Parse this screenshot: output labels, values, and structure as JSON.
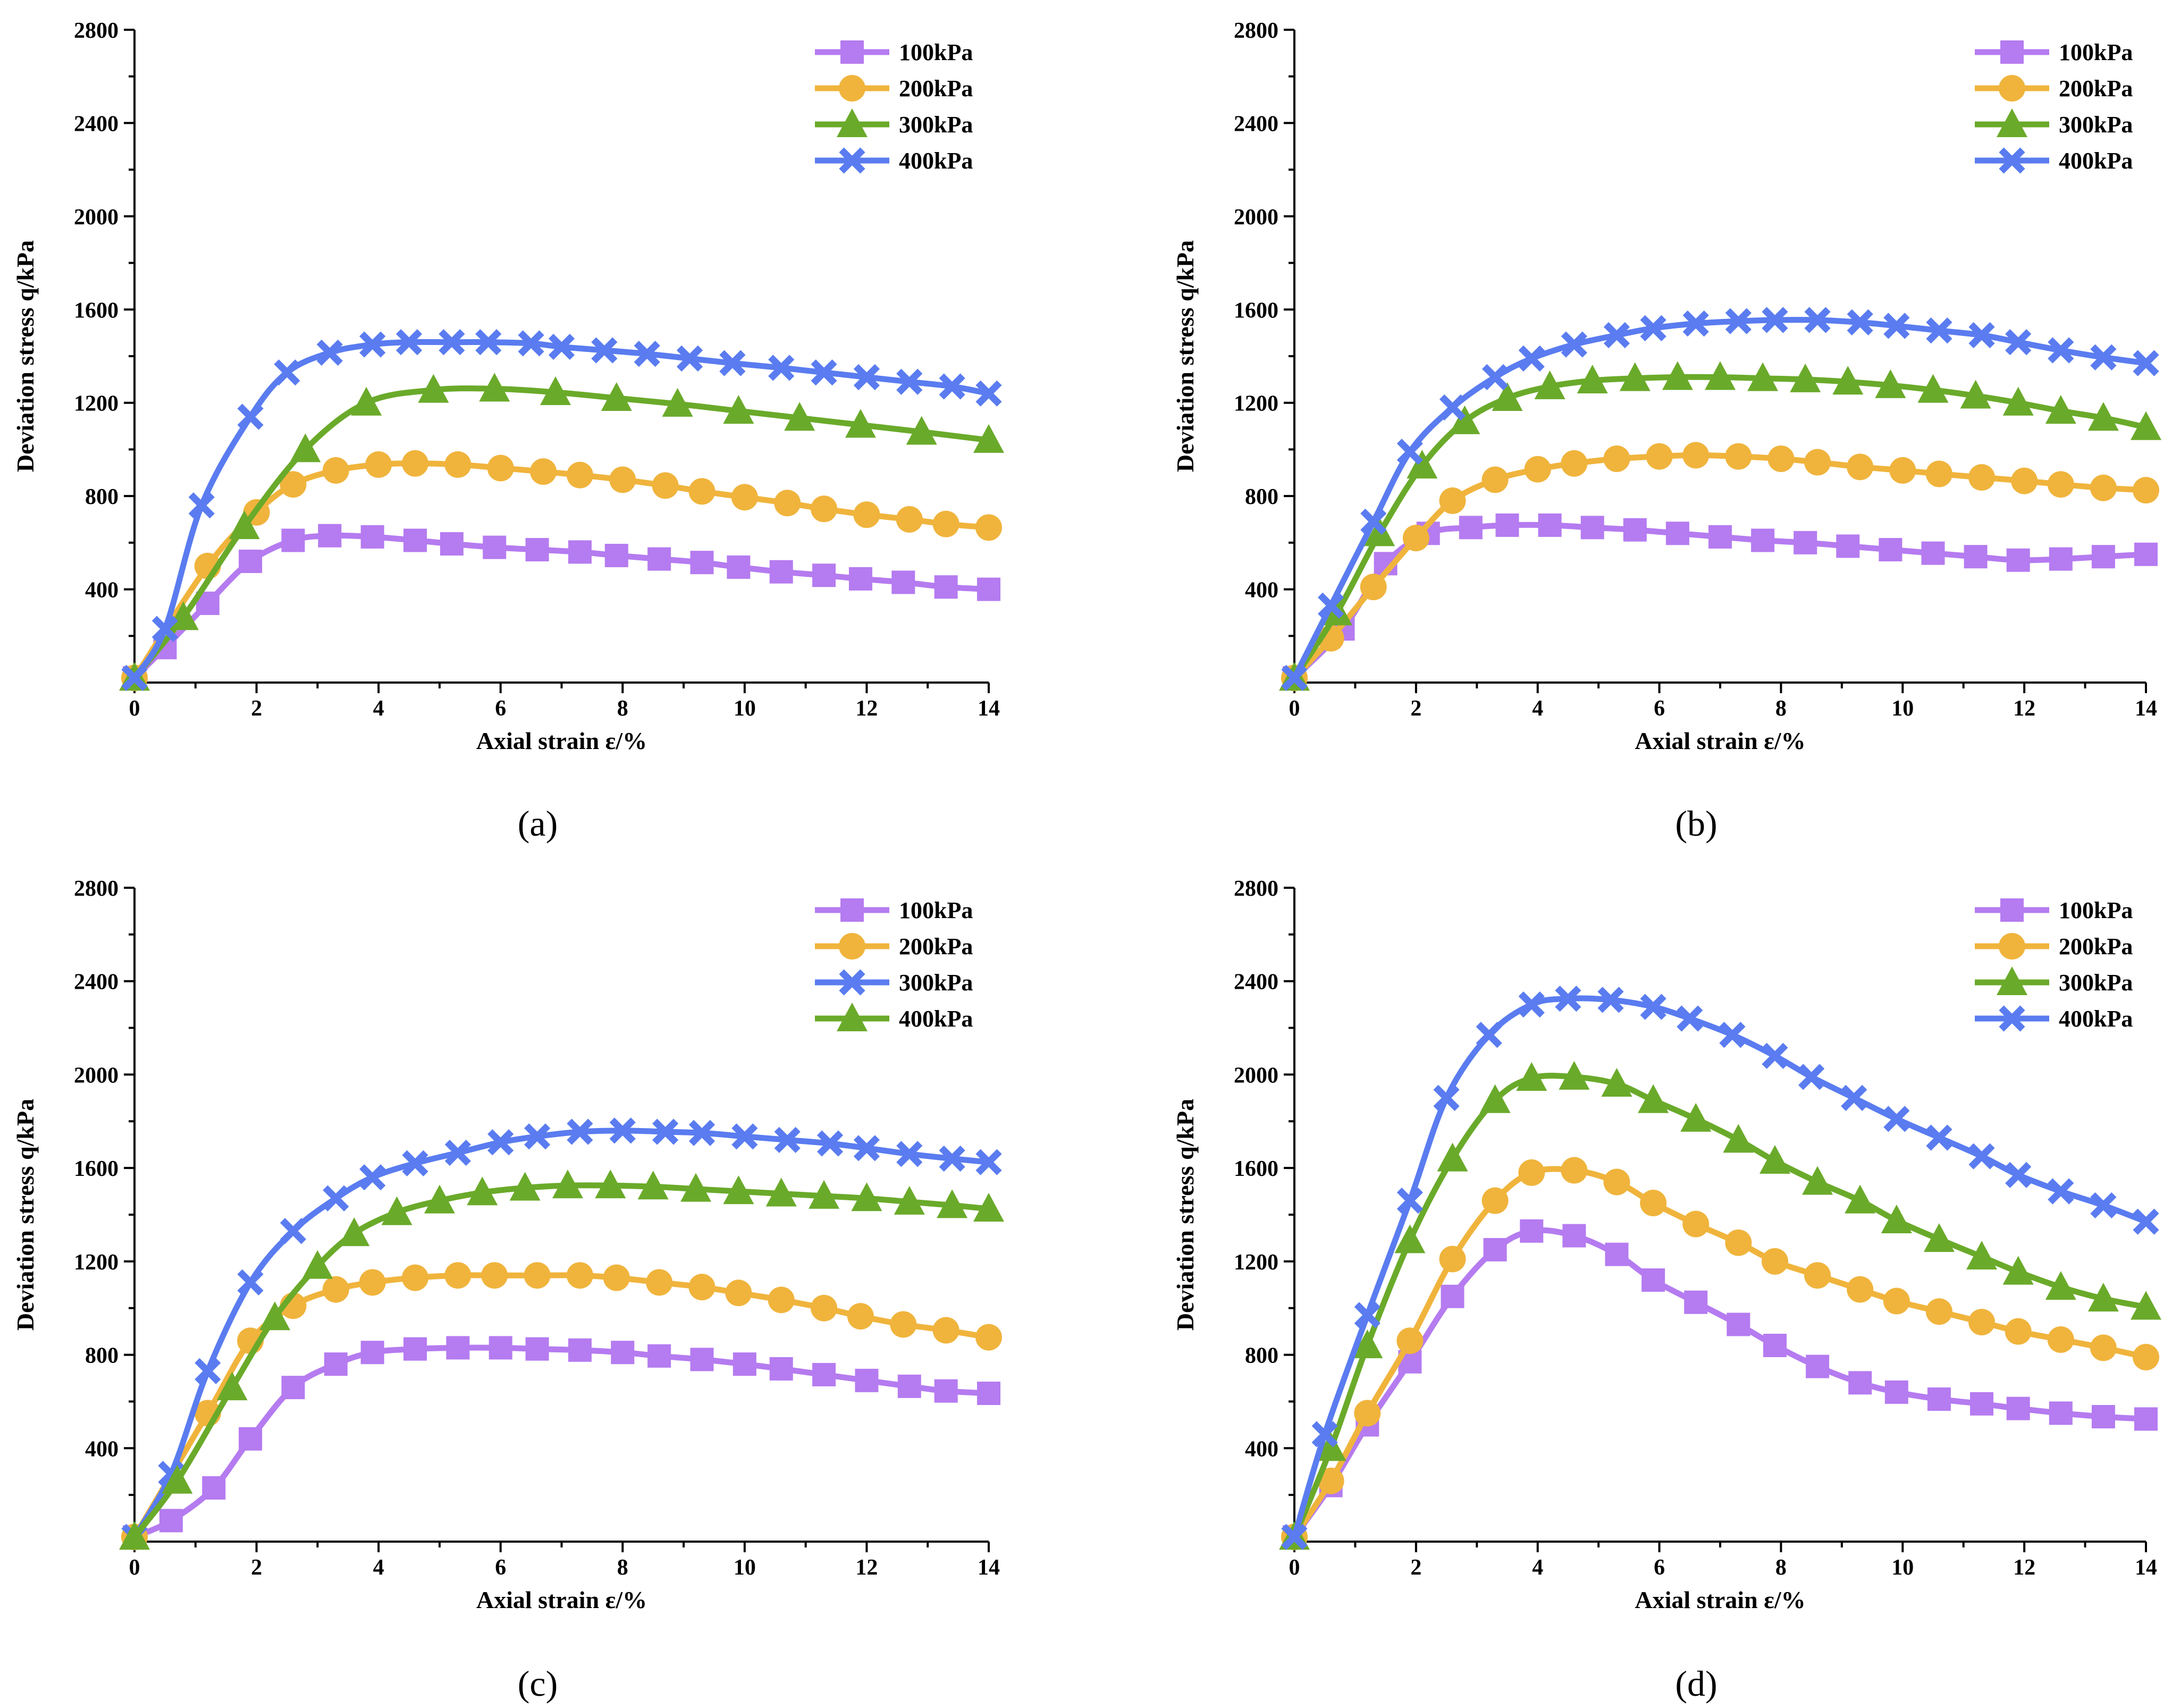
{
  "figure": {
    "panels": [
      "(a)",
      "(b)",
      "(c)",
      "(d)"
    ]
  },
  "chart_data": [
    {
      "id": "a",
      "panel_label": "(a)",
      "type": "line",
      "xlabel": "Axial strain ε/%",
      "ylabel": "Deviation stress q/kPa",
      "xlim": [
        0,
        14
      ],
      "ylim": [
        0,
        2800
      ],
      "xticks": [
        0,
        2,
        4,
        6,
        8,
        10,
        12,
        14
      ],
      "yticks": [
        400,
        800,
        1200,
        1600,
        2000,
        2400,
        2800
      ],
      "legend_position": "top-right",
      "series": [
        {
          "name": "100kPa",
          "color": "#b57bf0",
          "marker": "square",
          "x": [
            0,
            0.5,
            1.2,
            1.9,
            2.6,
            3.2,
            3.9,
            4.6,
            5.2,
            5.9,
            6.6,
            7.3,
            7.9,
            8.6,
            9.3,
            9.9,
            10.6,
            11.3,
            11.9,
            12.6,
            13.3,
            14
          ],
          "y": [
            20,
            150,
            340,
            520,
            610,
            630,
            625,
            610,
            595,
            580,
            570,
            560,
            545,
            530,
            515,
            495,
            475,
            460,
            445,
            430,
            410,
            400
          ]
        },
        {
          "name": "200kPa",
          "color": "#f0b43c",
          "marker": "circle",
          "x": [
            0,
            1.2,
            2.0,
            2.6,
            3.3,
            4.0,
            4.6,
            5.3,
            6.0,
            6.7,
            7.3,
            8.0,
            8.7,
            9.3,
            10.0,
            10.7,
            11.3,
            12.0,
            12.7,
            13.3,
            14
          ],
          "y": [
            20,
            500,
            730,
            850,
            910,
            935,
            940,
            935,
            920,
            905,
            890,
            870,
            845,
            820,
            795,
            770,
            745,
            720,
            700,
            680,
            665
          ]
        },
        {
          "name": "300kPa",
          "color": "#6aaa2a",
          "marker": "triangle",
          "x": [
            0,
            0.8,
            1.8,
            2.8,
            3.8,
            4.9,
            5.9,
            6.9,
            7.9,
            8.9,
            9.9,
            10.9,
            11.9,
            12.9,
            14
          ],
          "y": [
            20,
            280,
            670,
            1000,
            1200,
            1255,
            1260,
            1245,
            1220,
            1195,
            1165,
            1135,
            1105,
            1075,
            1040
          ]
        },
        {
          "name": "400kPa",
          "color": "#5a7cf0",
          "marker": "x",
          "x": [
            0,
            0.5,
            1.1,
            1.9,
            2.5,
            3.2,
            3.9,
            4.5,
            5.2,
            5.8,
            6.5,
            7.0,
            7.7,
            8.4,
            9.1,
            9.8,
            10.6,
            11.3,
            12.0,
            12.7,
            13.4,
            14
          ],
          "y": [
            20,
            230,
            760,
            1140,
            1330,
            1415,
            1450,
            1460,
            1460,
            1460,
            1455,
            1440,
            1425,
            1410,
            1390,
            1370,
            1350,
            1330,
            1310,
            1290,
            1270,
            1240
          ]
        }
      ]
    },
    {
      "id": "b",
      "panel_label": "(b)",
      "type": "line",
      "xlabel": "Axial strain ε/%",
      "ylabel": "Deviation stress q/kPa",
      "xlim": [
        0,
        14
      ],
      "ylim": [
        0,
        2800
      ],
      "xticks": [
        0,
        2,
        4,
        6,
        8,
        10,
        12,
        14
      ],
      "yticks": [
        400,
        800,
        1200,
        1600,
        2000,
        2400,
        2800
      ],
      "legend_position": "top-right",
      "series": [
        {
          "name": "100kPa",
          "color": "#b57bf0",
          "marker": "square",
          "x": [
            0,
            0.8,
            1.5,
            2.2,
            2.9,
            3.5,
            4.2,
            4.9,
            5.6,
            6.3,
            7.0,
            7.7,
            8.4,
            9.1,
            9.8,
            10.5,
            11.2,
            11.9,
            12.6,
            13.3,
            14
          ],
          "y": [
            20,
            230,
            510,
            640,
            665,
            675,
            675,
            665,
            655,
            640,
            625,
            610,
            600,
            585,
            570,
            555,
            540,
            525,
            530,
            540,
            550
          ]
        },
        {
          "name": "200kPa",
          "color": "#f0b43c",
          "marker": "circle",
          "x": [
            0,
            0.6,
            1.3,
            2.0,
            2.6,
            3.3,
            4.0,
            4.6,
            5.3,
            6.0,
            6.6,
            7.3,
            8.0,
            8.6,
            9.3,
            10.0,
            10.6,
            11.3,
            12.0,
            12.6,
            13.3,
            14
          ],
          "y": [
            20,
            190,
            410,
            620,
            780,
            870,
            915,
            940,
            960,
            970,
            975,
            970,
            960,
            945,
            925,
            910,
            895,
            880,
            865,
            850,
            835,
            825
          ]
        },
        {
          "name": "300kPa",
          "color": "#6aaa2a",
          "marker": "triangle",
          "x": [
            0,
            0.7,
            1.4,
            2.1,
            2.8,
            3.5,
            4.2,
            4.9,
            5.6,
            6.3,
            7.0,
            7.7,
            8.4,
            9.1,
            9.8,
            10.5,
            11.2,
            11.9,
            12.6,
            13.3,
            14
          ],
          "y": [
            20,
            300,
            640,
            930,
            1120,
            1220,
            1270,
            1295,
            1305,
            1310,
            1310,
            1305,
            1300,
            1290,
            1275,
            1255,
            1230,
            1200,
            1165,
            1135,
            1095
          ]
        },
        {
          "name": "400kPa",
          "color": "#5a7cf0",
          "marker": "x",
          "x": [
            0,
            0.6,
            1.3,
            1.9,
            2.6,
            3.3,
            3.9,
            4.6,
            5.3,
            5.9,
            6.6,
            7.3,
            7.9,
            8.6,
            9.3,
            9.9,
            10.6,
            11.3,
            11.9,
            12.6,
            13.3,
            14
          ],
          "y": [
            20,
            330,
            690,
            990,
            1180,
            1310,
            1390,
            1450,
            1490,
            1520,
            1540,
            1550,
            1555,
            1555,
            1545,
            1530,
            1510,
            1490,
            1460,
            1425,
            1395,
            1370
          ]
        }
      ]
    },
    {
      "id": "c",
      "panel_label": "(c)",
      "type": "line",
      "xlabel": "Axial strain ε/%",
      "ylabel": "Deviation stress q/kPa",
      "xlim": [
        0,
        14
      ],
      "ylim": [
        0,
        2800
      ],
      "xticks": [
        0,
        2,
        4,
        6,
        8,
        10,
        12,
        14
      ],
      "yticks": [
        400,
        800,
        1200,
        1600,
        2000,
        2400,
        2800
      ],
      "legend_position": "top-right",
      "series": [
        {
          "name": "100kPa",
          "color": "#b57bf0",
          "marker": "square",
          "x": [
            0,
            0.6,
            1.3,
            1.9,
            2.6,
            3.3,
            3.9,
            4.6,
            5.3,
            6.0,
            6.6,
            7.3,
            8.0,
            8.6,
            9.3,
            10.0,
            10.6,
            11.3,
            12.0,
            12.7,
            13.3,
            14
          ],
          "y": [
            20,
            90,
            230,
            440,
            660,
            760,
            810,
            825,
            830,
            830,
            825,
            820,
            810,
            795,
            780,
            760,
            740,
            715,
            690,
            665,
            645,
            635
          ]
        },
        {
          "name": "200kPa",
          "color": "#f0b43c",
          "marker": "circle",
          "x": [
            0,
            1.2,
            1.9,
            2.6,
            3.3,
            3.9,
            4.6,
            5.3,
            5.9,
            6.6,
            7.3,
            7.9,
            8.6,
            9.3,
            9.9,
            10.6,
            11.3,
            11.9,
            12.6,
            13.3,
            14
          ],
          "y": [
            20,
            550,
            860,
            1010,
            1080,
            1110,
            1130,
            1140,
            1140,
            1140,
            1140,
            1130,
            1110,
            1090,
            1065,
            1035,
            1000,
            965,
            930,
            905,
            875
          ]
        },
        {
          "name": "300kPa",
          "color": "#5a7cf0",
          "marker": "x",
          "x": [
            0,
            0.6,
            1.2,
            1.9,
            2.6,
            3.3,
            3.9,
            4.6,
            5.3,
            6.0,
            6.6,
            7.3,
            8.0,
            8.7,
            9.3,
            10.0,
            10.7,
            11.4,
            12.0,
            12.7,
            13.4,
            14
          ],
          "y": [
            20,
            290,
            730,
            1110,
            1330,
            1470,
            1560,
            1620,
            1665,
            1710,
            1735,
            1755,
            1760,
            1755,
            1750,
            1735,
            1720,
            1705,
            1685,
            1660,
            1640,
            1625
          ]
        },
        {
          "name": "400kPa",
          "color": "#6aaa2a",
          "marker": "triangle",
          "x": [
            0,
            0.7,
            1.6,
            2.3,
            3.0,
            3.6,
            4.3,
            5.0,
            5.7,
            6.4,
            7.1,
            7.8,
            8.5,
            9.2,
            9.9,
            10.6,
            11.3,
            12.0,
            12.7,
            13.4,
            14
          ],
          "y": [
            20,
            260,
            660,
            960,
            1180,
            1320,
            1410,
            1460,
            1495,
            1515,
            1525,
            1525,
            1520,
            1510,
            1500,
            1490,
            1480,
            1470,
            1455,
            1440,
            1425
          ]
        }
      ]
    },
    {
      "id": "d",
      "panel_label": "(d)",
      "type": "line",
      "xlabel": "Axial strain ε/%",
      "ylabel": "Deviation stress q/kPa",
      "xlim": [
        0,
        14
      ],
      "ylim": [
        0,
        2800
      ],
      "xticks": [
        0,
        2,
        4,
        6,
        8,
        10,
        12,
        14
      ],
      "yticks": [
        400,
        800,
        1200,
        1600,
        2000,
        2400,
        2800
      ],
      "legend_position": "top-right",
      "series": [
        {
          "name": "100kPa",
          "color": "#b57bf0",
          "marker": "square",
          "x": [
            0,
            0.6,
            1.2,
            1.9,
            2.6,
            3.3,
            3.9,
            4.6,
            5.3,
            5.9,
            6.6,
            7.3,
            7.9,
            8.6,
            9.3,
            9.9,
            10.6,
            11.3,
            11.9,
            12.6,
            13.3,
            14
          ],
          "y": [
            20,
            240,
            500,
            770,
            1050,
            1250,
            1330,
            1310,
            1230,
            1120,
            1025,
            930,
            840,
            750,
            680,
            640,
            610,
            590,
            570,
            550,
            535,
            525
          ]
        },
        {
          "name": "200kPa",
          "color": "#f0b43c",
          "marker": "circle",
          "x": [
            0,
            0.6,
            1.2,
            1.9,
            2.6,
            3.3,
            3.9,
            4.6,
            5.3,
            5.9,
            6.6,
            7.3,
            7.9,
            8.6,
            9.3,
            9.9,
            10.6,
            11.3,
            11.9,
            12.6,
            13.3,
            14
          ],
          "y": [
            20,
            260,
            550,
            860,
            1210,
            1460,
            1580,
            1590,
            1540,
            1450,
            1360,
            1280,
            1200,
            1140,
            1080,
            1030,
            985,
            940,
            900,
            865,
            830,
            790
          ]
        },
        {
          "name": "300kPa",
          "color": "#6aaa2a",
          "marker": "triangle",
          "x": [
            0,
            0.6,
            1.2,
            1.9,
            2.6,
            3.3,
            3.9,
            4.6,
            5.3,
            5.9,
            6.6,
            7.3,
            7.9,
            8.6,
            9.3,
            9.9,
            10.6,
            11.3,
            11.9,
            12.6,
            13.3,
            14
          ],
          "y": [
            20,
            400,
            840,
            1290,
            1640,
            1890,
            1985,
            1990,
            1960,
            1890,
            1810,
            1720,
            1630,
            1540,
            1460,
            1375,
            1295,
            1220,
            1155,
            1090,
            1040,
            1005
          ]
        },
        {
          "name": "400kPa",
          "color": "#5a7cf0",
          "marker": "x",
          "x": [
            0,
            0.5,
            1.2,
            1.9,
            2.5,
            3.2,
            3.9,
            4.5,
            5.2,
            5.9,
            6.5,
            7.2,
            7.9,
            8.5,
            9.2,
            9.9,
            10.6,
            11.3,
            11.9,
            12.6,
            13.3,
            14
          ],
          "y": [
            20,
            460,
            970,
            1460,
            1900,
            2170,
            2300,
            2325,
            2320,
            2290,
            2240,
            2170,
            2080,
            1990,
            1900,
            1810,
            1730,
            1650,
            1570,
            1500,
            1440,
            1370
          ]
        }
      ]
    }
  ]
}
